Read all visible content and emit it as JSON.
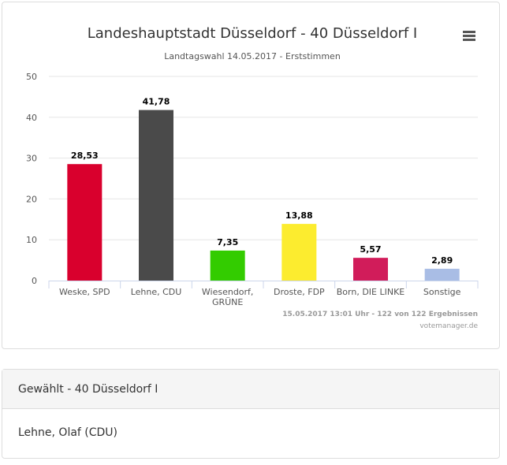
{
  "chart_data": {
    "type": "bar",
    "title": "Landeshauptstadt Düsseldorf - 40 Düsseldorf I",
    "subtitle": "Landtagswahl 14.05.2017 - Erststimmen",
    "categories": [
      "Weske, SPD",
      "Lehne, CDU",
      "Wiesendorf, GRÜNE",
      "Droste, FDP",
      "Born, DIE LINKE",
      "Sonstige"
    ],
    "category_lines": [
      [
        "Weske, SPD"
      ],
      [
        "Lehne, CDU"
      ],
      [
        "Wiesendorf,",
        "GRÜNE"
      ],
      [
        "Droste, FDP"
      ],
      [
        "Born, DIE LINKE"
      ],
      [
        "Sonstige"
      ]
    ],
    "values": [
      28.53,
      41.78,
      7.35,
      13.88,
      5.57,
      2.89
    ],
    "data_labels": [
      "28,53",
      "41,78",
      "7,35",
      "13,88",
      "5,57",
      "2,89"
    ],
    "colors": [
      "#d9002d",
      "#4a4a4a",
      "#33cc00",
      "#fcec2f",
      "#d11c5a",
      "#a9bde5"
    ],
    "ylim": [
      0,
      50
    ],
    "yticks": [
      0,
      10,
      20,
      30,
      40,
      50
    ],
    "grid": true,
    "legend": "none",
    "credits": "15.05.2017 13:01 Uhr - 122 von 122 Ergebnissen",
    "source": "votemanager.de"
  },
  "menu_icon": "hamburger-menu-icon",
  "elected": {
    "heading": "Gewählt - 40 Düsseldorf I",
    "name": "Lehne, Olaf (CDU)"
  }
}
